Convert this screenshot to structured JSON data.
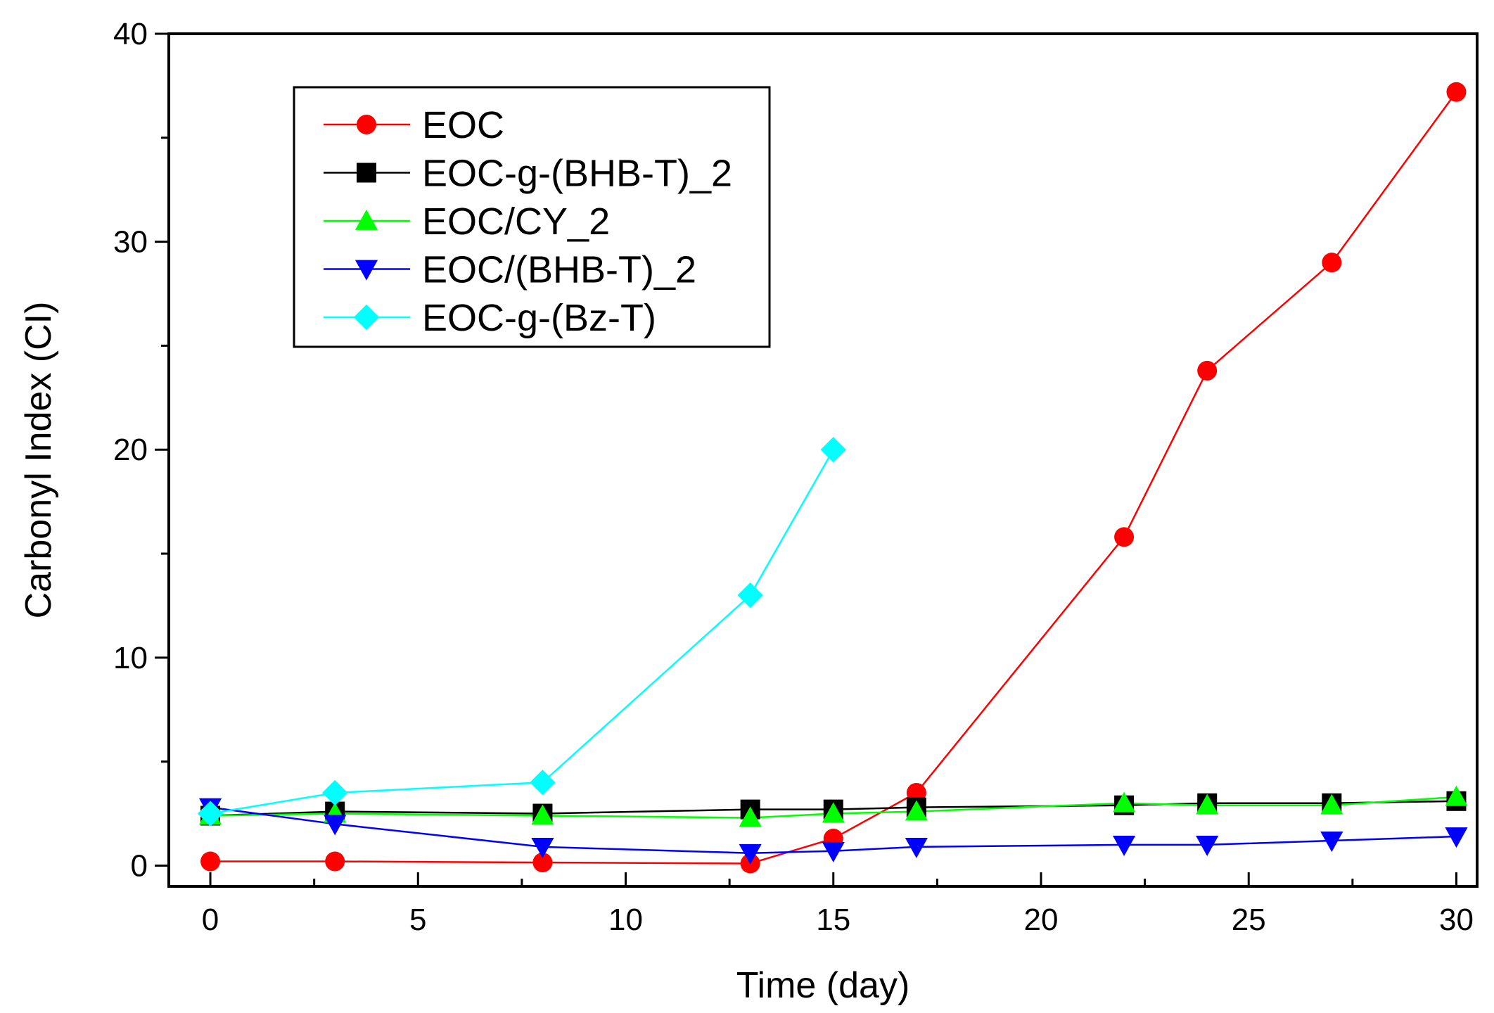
{
  "chart_data": {
    "type": "line",
    "title": "",
    "xlabel": "Time (day)",
    "ylabel": "Carbonyl Index (CI)",
    "xlim": [
      -1,
      30.5
    ],
    "ylim": [
      -1,
      40
    ],
    "xticks": [
      0,
      5,
      10,
      15,
      20,
      25,
      30
    ],
    "xtick_labels": [
      "0",
      "5",
      "10",
      "15",
      "20",
      "25",
      "30"
    ],
    "yticks": [
      0,
      10,
      20,
      30,
      40
    ],
    "ytick_labels": [
      "0",
      "10",
      "20",
      "30",
      "40"
    ],
    "grid": false,
    "legend_position": "top-left",
    "series": [
      {
        "name": "EOC",
        "color": "#ff0000",
        "marker": "circle",
        "x": [
          0,
          3,
          8,
          13,
          15,
          17,
          22,
          24,
          27,
          30
        ],
        "y": [
          0.2,
          0.2,
          0.15,
          0.1,
          1.3,
          3.5,
          15.8,
          23.8,
          29.0,
          37.2
        ]
      },
      {
        "name": "EOC-g-(BHB-T)_2",
        "color": "#000000",
        "marker": "square",
        "x": [
          0,
          3,
          8,
          13,
          15,
          17,
          22,
          24,
          27,
          30
        ],
        "y": [
          2.4,
          2.6,
          2.5,
          2.7,
          2.7,
          2.8,
          2.9,
          3.0,
          3.0,
          3.1
        ]
      },
      {
        "name": "EOC/CY_2",
        "color": "#00ff00",
        "marker": "triangle-up",
        "x": [
          0,
          3,
          8,
          13,
          15,
          17,
          22,
          24,
          27,
          30
        ],
        "y": [
          2.4,
          2.5,
          2.4,
          2.3,
          2.5,
          2.6,
          3.0,
          2.9,
          2.9,
          3.3
        ]
      },
      {
        "name": "EOC/(BHB-T)_2",
        "color": "#0000ff",
        "marker": "triangle-down",
        "x": [
          0,
          3,
          8,
          13,
          15,
          17,
          22,
          24,
          27,
          30
        ],
        "y": [
          2.8,
          2.0,
          0.9,
          0.6,
          0.7,
          0.9,
          1.0,
          1.0,
          1.2,
          1.4
        ]
      },
      {
        "name": "EOC-g-(Bz-T)",
        "color": "#00ffff",
        "marker": "diamond",
        "x": [
          0,
          3,
          8,
          13,
          15
        ],
        "y": [
          2.5,
          3.5,
          4.0,
          13.0,
          20.0
        ]
      }
    ]
  }
}
